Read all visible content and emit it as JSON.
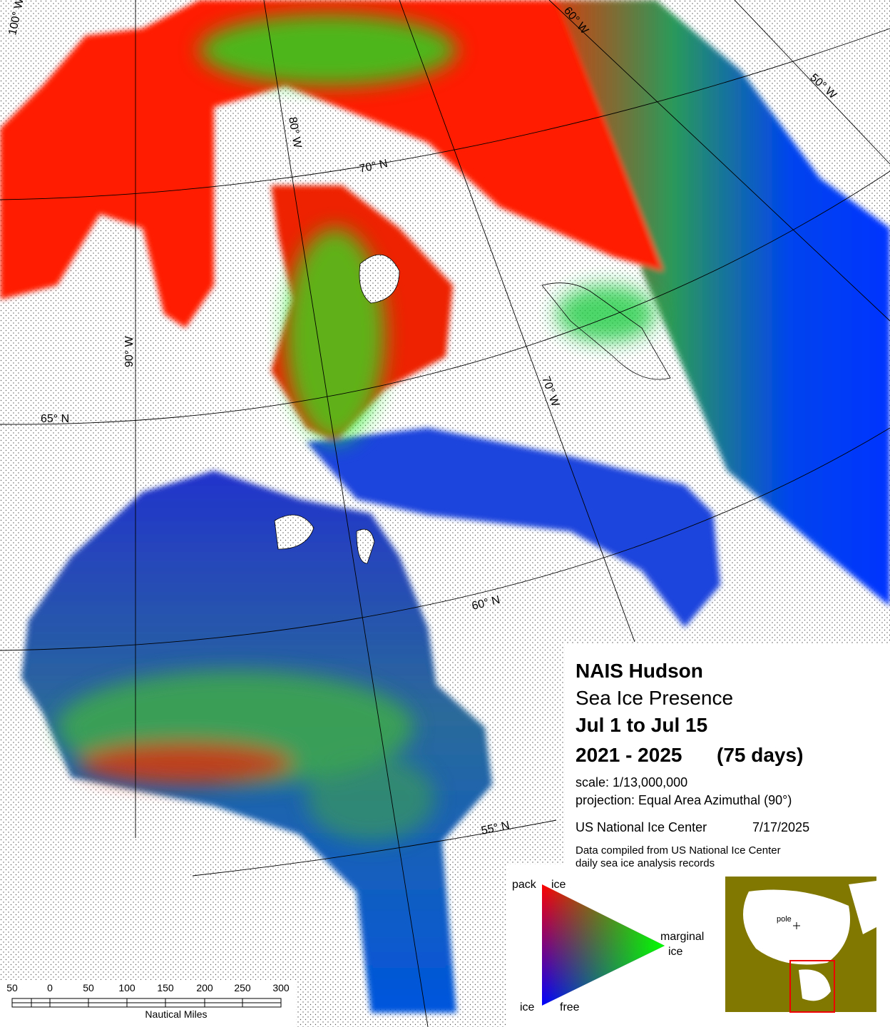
{
  "header": {
    "title": "NAIS Hudson",
    "subtitle": "Sea Ice Presence",
    "period": "Jul 1 to Jul 15",
    "years": "2021 - 2025",
    "days": "(75 days)"
  },
  "info": {
    "scale": "scale: 1/13,000,000",
    "projection": "projection: Equal Area Azimuthal (90°)",
    "agency": "US National Ice Center",
    "date": "7/17/2025",
    "note": [
      "Data compiled from US National Ice Center",
      "daily sea ice analysis records"
    ]
  },
  "legend": {
    "top": [
      "pack",
      "ice"
    ],
    "right": [
      "marginal",
      "ice"
    ],
    "bottom": [
      "ice",
      "free"
    ]
  },
  "inset": {
    "label": "pole"
  },
  "graticule": {
    "meridians": [
      "100° W",
      "90° W",
      "80° W",
      "70° W",
      "60° W",
      "50° W"
    ],
    "parallels": [
      "70° N",
      "65° N",
      "60° N",
      "55° N"
    ]
  },
  "scale_bar": {
    "ticks": [
      "50",
      "0",
      "50",
      "100",
      "150",
      "200",
      "250",
      "300"
    ],
    "unit": "Nautical Miles"
  }
}
